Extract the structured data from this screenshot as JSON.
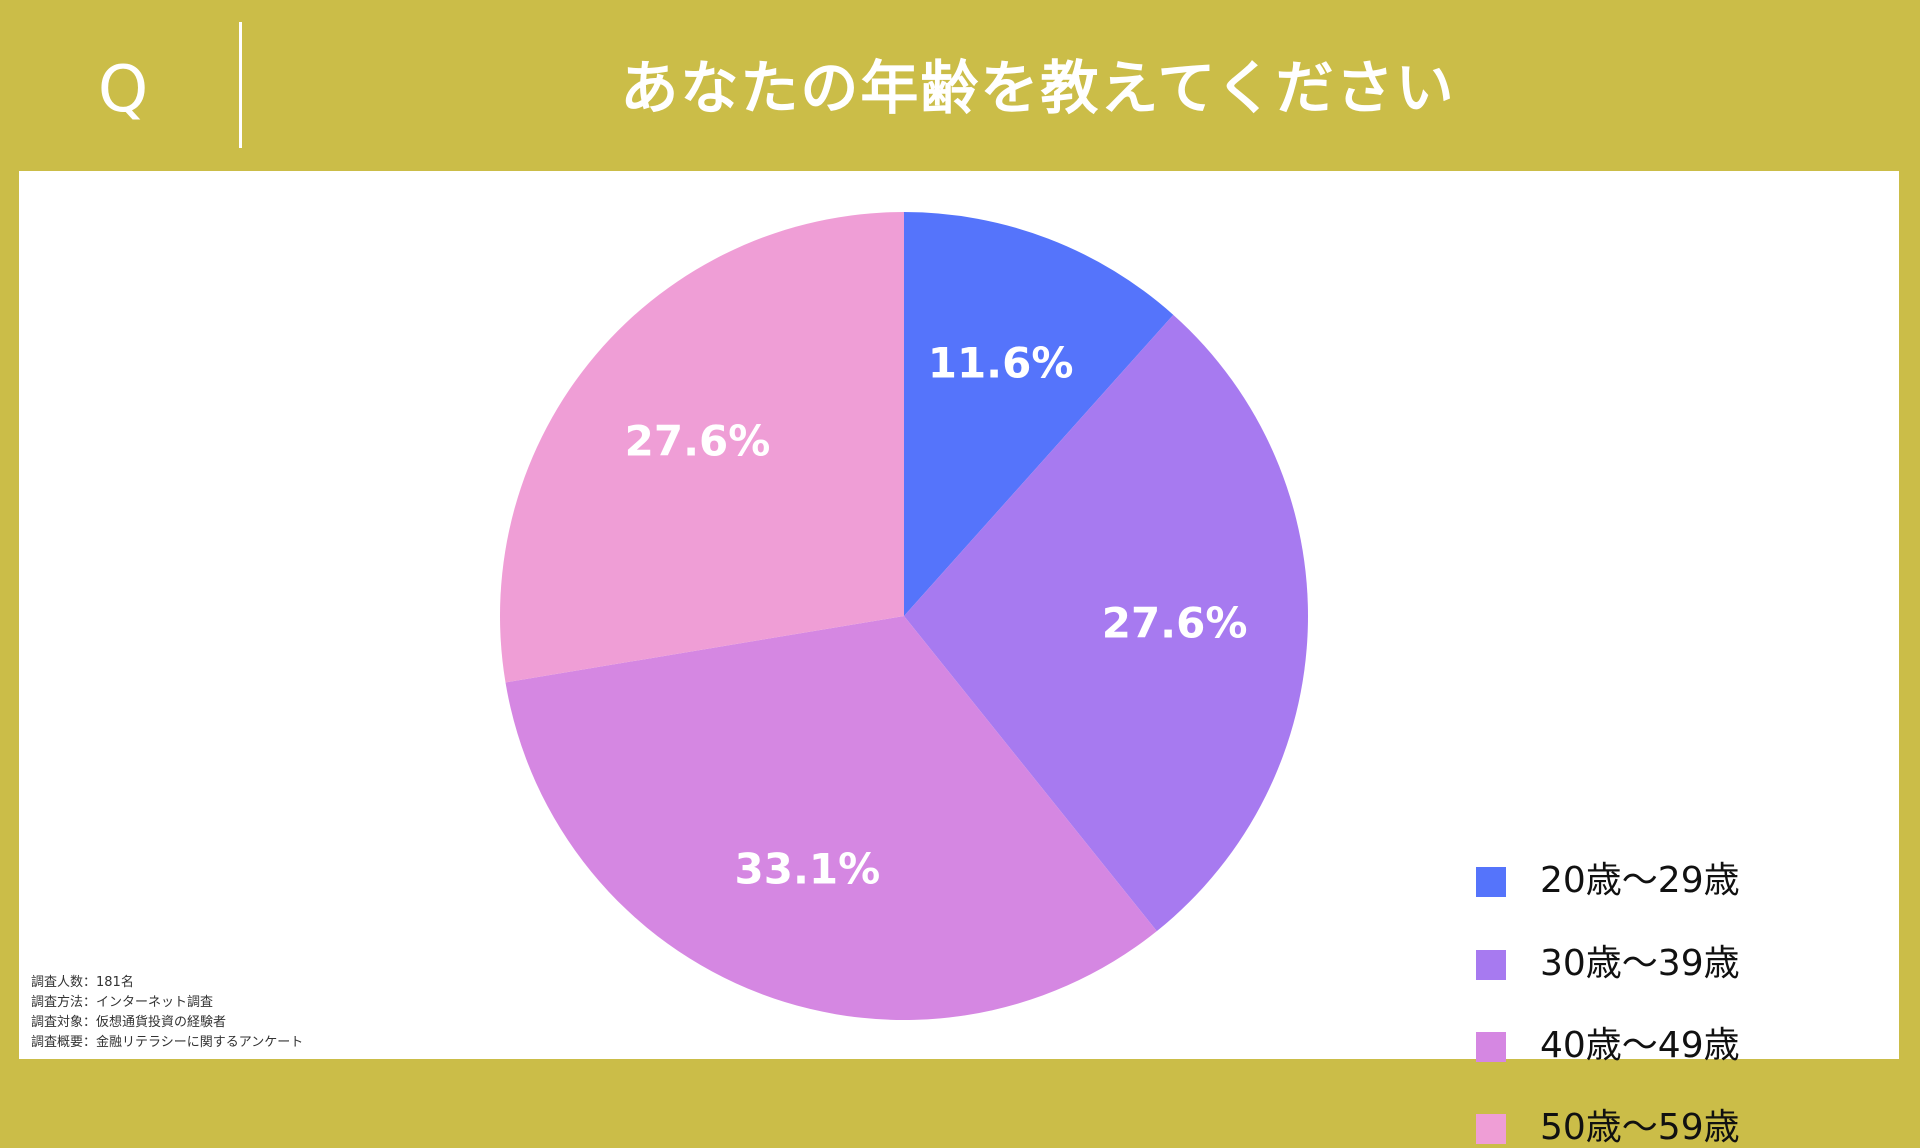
{
  "header": {
    "q_mark": "Q",
    "title": "あなたの年齢を教えてください"
  },
  "chart_data": {
    "type": "pie",
    "title": "あなたの年齢を教えてください",
    "categories": [
      "20歳～29歳",
      "30歳～39歳",
      "40歳～49歳",
      "50歳～59歳"
    ],
    "values": [
      11.6,
      27.6,
      33.1,
      27.6
    ],
    "value_labels": [
      "11.6%",
      "27.6%",
      "33.1%",
      "27.6%"
    ],
    "colors": [
      "#5574fb",
      "#a77af0",
      "#d587e2",
      "#ef9ed6"
    ],
    "start": "12 o'clock",
    "direction": "clockwise",
    "legend_position": "right"
  },
  "legend": {
    "items": [
      {
        "label": "20歳～29歳",
        "color": "#5574fb"
      },
      {
        "label": "30歳～39歳",
        "color": "#a77af0"
      },
      {
        "label": "40歳～49歳",
        "color": "#d587e2"
      },
      {
        "label": "50歳～59歳",
        "color": "#ef9ed6"
      }
    ]
  },
  "survey_notes": [
    "調査人数：181名",
    "調査方法：インターネット調査",
    "調査対象：仮想通貨投資の経験者",
    "調査概要：金融リテラシーに関するアンケート"
  ],
  "colors": {
    "background": "#cbbd48",
    "panel": "#ffffff",
    "header_text": "#ffffff",
    "slice_label": "#ffffff"
  }
}
